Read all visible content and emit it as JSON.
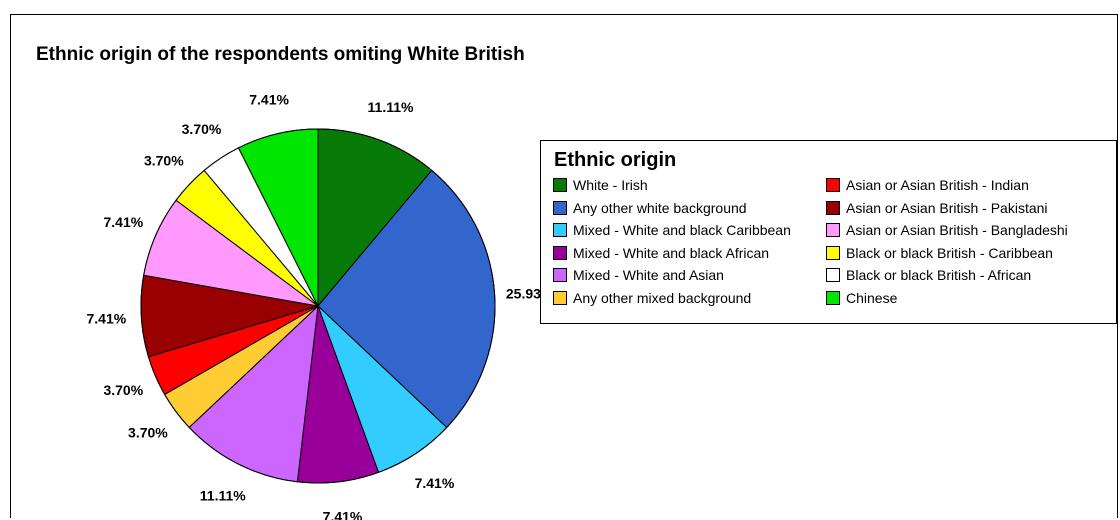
{
  "chart_data": {
    "type": "pie",
    "title": "Ethnic origin of the respondents omiting White British",
    "legend_title": "Ethnic origin",
    "legend_placement": "right",
    "slices": [
      {
        "name": "White - Irish",
        "value": 11.11,
        "label": "11.11%",
        "color": "#087A08"
      },
      {
        "name": "Any other white background",
        "value": 25.93,
        "label": "25.93%",
        "color": "#3366CC"
      },
      {
        "name": "Mixed - White and black Caribbean",
        "value": 7.41,
        "label": "7.41%",
        "color": "#33CCFF"
      },
      {
        "name": "Mixed - White and black African",
        "value": 7.41,
        "label": "7.41%",
        "color": "#990099"
      },
      {
        "name": "Mixed - White and Asian",
        "value": 11.11,
        "label": "11.11%",
        "color": "#CC66FF"
      },
      {
        "name": "Any other mixed background",
        "value": 3.7,
        "label": "3.70%",
        "color": "#FFCC33"
      },
      {
        "name": "Asian or Asian British - Indian",
        "value": 3.7,
        "label": "3.70%",
        "color": "#FF0000"
      },
      {
        "name": "Asian or Asian British - Pakistani",
        "value": 7.41,
        "label": "7.41%",
        "color": "#990000"
      },
      {
        "name": "Asian or Asian British - Bangladeshi",
        "value": 7.41,
        "label": "7.41%",
        "color": "#FF99FF"
      },
      {
        "name": "Black or black British - Caribbean",
        "value": 3.7,
        "label": "3.70%",
        "color": "#FFFF00"
      },
      {
        "name": "Black or black British - African",
        "value": 3.7,
        "label": "3.70%",
        "color": "#FFFFFF"
      },
      {
        "name": "Chinese",
        "value": 7.41,
        "label": "7.41%",
        "color": "#00E600"
      }
    ]
  }
}
